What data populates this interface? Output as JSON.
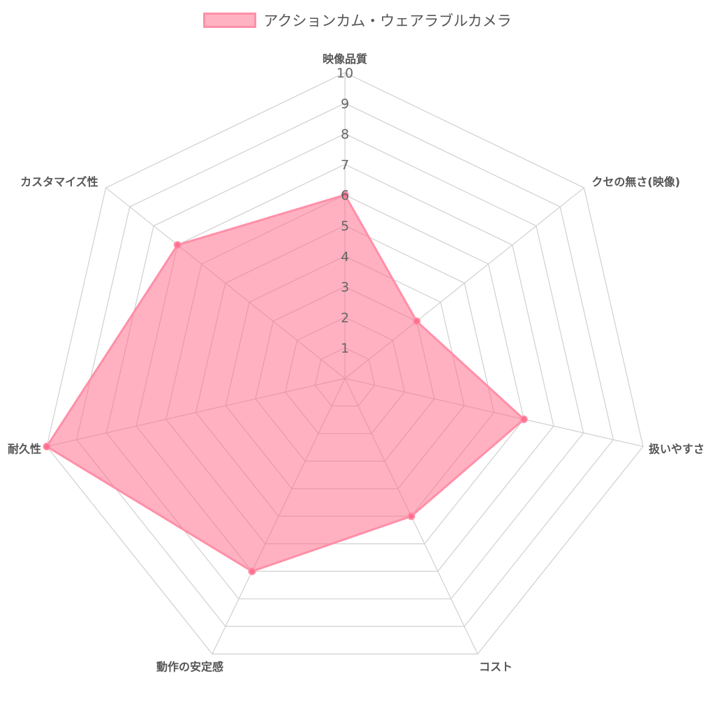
{
  "chart_data": {
    "type": "radar",
    "categories": [
      "映像品質",
      "クセの無さ(映像)",
      "扱いやすさ",
      "コスト",
      "動作の安定感",
      "耐久性",
      "カスタマイズ性"
    ],
    "series": [
      {
        "name": "アクションカム・ウェアラブルカメラ",
        "values": [
          6,
          3,
          6,
          5,
          7,
          10,
          7
        ]
      }
    ],
    "rlim": [
      0,
      10
    ],
    "ticks": [
      "1",
      "2",
      "3",
      "4",
      "5",
      "6",
      "7",
      "8",
      "9",
      "10"
    ],
    "grid": true,
    "legend_position": "top",
    "colors": {
      "fill": "rgba(255,99,132,0.5)",
      "line": "#ff8fa8",
      "point": "#ff6f8e",
      "grid": "#d0d0d0"
    }
  }
}
